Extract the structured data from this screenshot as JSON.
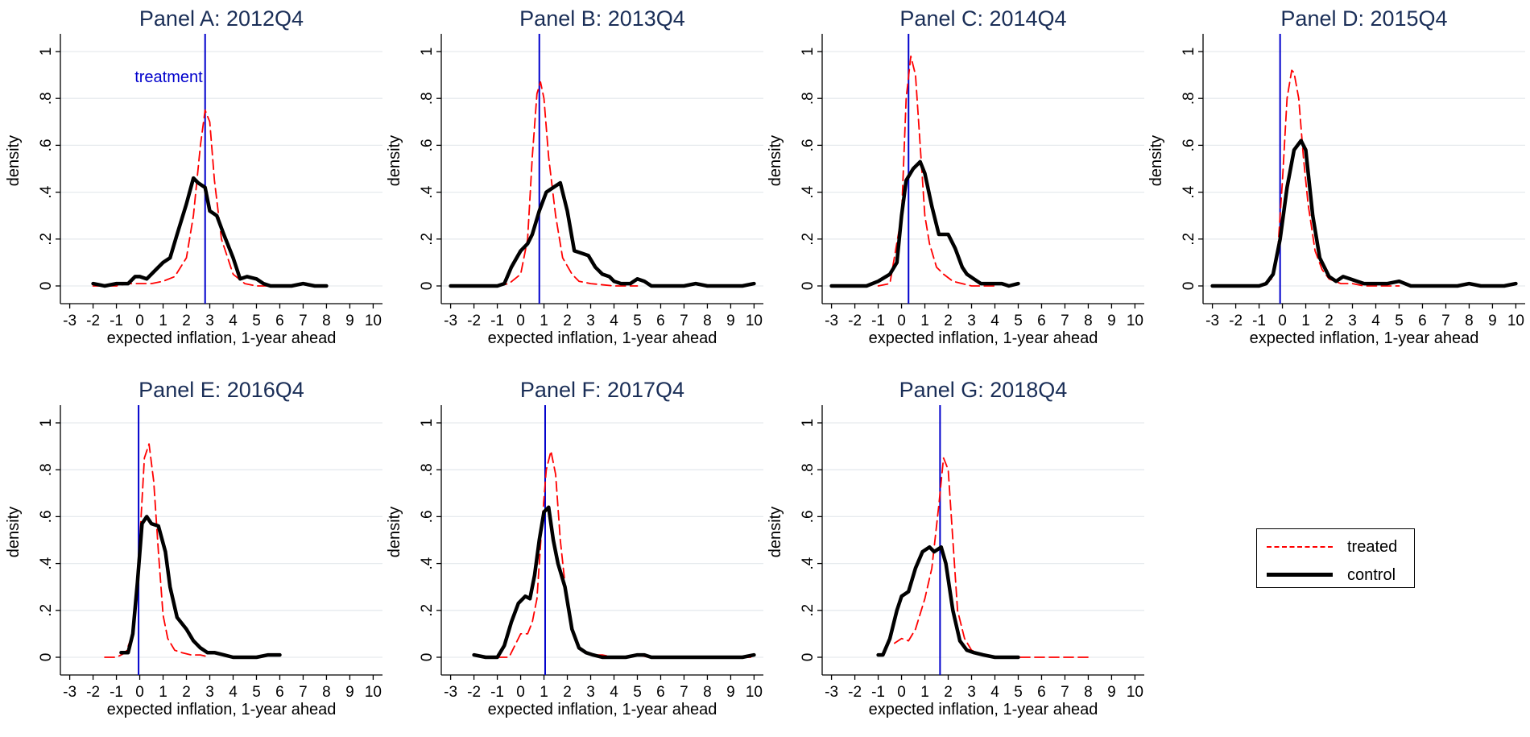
{
  "figure": {
    "xlabel": "expected inflation, 1-year ahead",
    "ylabel": "density",
    "xticks": [
      -3,
      -2,
      -1,
      0,
      1,
      2,
      3,
      4,
      5,
      6,
      7,
      8,
      9,
      10
    ],
    "yticks": [
      0,
      0.2,
      0.4,
      0.6,
      0.8,
      1
    ],
    "ytick_labels": [
      "0",
      ".2",
      ".4",
      ".6",
      ".8",
      "1"
    ],
    "treatment_label": "treatment",
    "colors": {
      "treated": "#ff0000",
      "control": "#000000",
      "treatment_line": "#0000cc",
      "title": "#1a2e57",
      "grid": "#e6eaee"
    }
  },
  "legend": {
    "position": "bottom-right",
    "entries": [
      {
        "label": "treated",
        "style": "dashed",
        "color": "#ff0000"
      },
      {
        "label": "control",
        "style": "solid-thick",
        "color": "#000000"
      }
    ]
  },
  "chart_data": [
    {
      "type": "line",
      "title": "Panel A: 2012Q4",
      "xlim": [
        -3.4,
        10.4
      ],
      "ylim": [
        0,
        1
      ],
      "treatment_x": 2.8,
      "series": [
        {
          "name": "treated",
          "x": [
            -2,
            -1,
            -0.5,
            0,
            0.5,
            1,
            1.5,
            2,
            2.3,
            2.6,
            2.8,
            3,
            3.2,
            3.5,
            4,
            4.5,
            5,
            5.5
          ],
          "y": [
            0,
            0,
            0.01,
            0.01,
            0.01,
            0.02,
            0.04,
            0.12,
            0.3,
            0.6,
            0.75,
            0.7,
            0.45,
            0.2,
            0.05,
            0.01,
            0,
            0
          ]
        },
        {
          "name": "control",
          "x": [
            -2,
            -1.5,
            -1,
            -0.5,
            -0.2,
            0,
            0.3,
            0.6,
            1,
            1.3,
            1.6,
            2,
            2.3,
            2.5,
            2.8,
            3,
            3.3,
            3.6,
            4,
            4.3,
            4.6,
            5,
            5.3,
            5.6,
            6,
            6.5,
            7,
            7.5,
            8
          ],
          "y": [
            0.01,
            0,
            0.01,
            0.01,
            0.04,
            0.04,
            0.03,
            0.06,
            0.1,
            0.12,
            0.22,
            0.35,
            0.46,
            0.44,
            0.42,
            0.32,
            0.3,
            0.22,
            0.12,
            0.03,
            0.04,
            0.03,
            0.01,
            0,
            0,
            0,
            0.01,
            0,
            0
          ]
        }
      ]
    },
    {
      "type": "line",
      "title": "Panel B: 2013Q4",
      "xlim": [
        -3.4,
        10.4
      ],
      "ylim": [
        0,
        1
      ],
      "treatment_x": 0.8,
      "series": [
        {
          "name": "treated",
          "x": [
            -1,
            -0.5,
            0,
            0.3,
            0.5,
            0.7,
            0.85,
            1,
            1.2,
            1.5,
            1.8,
            2.2,
            2.5,
            3,
            4,
            5
          ],
          "y": [
            0,
            0.01,
            0.05,
            0.2,
            0.55,
            0.82,
            0.87,
            0.8,
            0.55,
            0.3,
            0.12,
            0.05,
            0.02,
            0.01,
            0,
            0
          ]
        },
        {
          "name": "control",
          "x": [
            -3,
            -2.5,
            -2,
            -1.5,
            -1,
            -0.7,
            -0.4,
            0,
            0.3,
            0.5,
            0.8,
            1.1,
            1.4,
            1.7,
            2,
            2.3,
            2.6,
            2.9,
            3.2,
            3.5,
            3.8,
            4,
            4.3,
            4.7,
            5,
            5.3,
            5.6,
            6,
            6.5,
            7,
            7.5,
            8,
            8.5,
            9,
            9.5,
            10
          ],
          "y": [
            0,
            0,
            0,
            0,
            0,
            0.01,
            0.08,
            0.15,
            0.18,
            0.22,
            0.32,
            0.4,
            0.42,
            0.44,
            0.32,
            0.15,
            0.14,
            0.13,
            0.08,
            0.05,
            0.04,
            0.02,
            0.01,
            0.01,
            0.03,
            0.02,
            0,
            0,
            0,
            0,
            0.01,
            0,
            0,
            0,
            0,
            0.01
          ]
        }
      ]
    },
    {
      "type": "line",
      "title": "Panel C: 2014Q4",
      "xlim": [
        -3.4,
        10.4
      ],
      "ylim": [
        0,
        1
      ],
      "treatment_x": 0.3,
      "series": [
        {
          "name": "treated",
          "x": [
            -1,
            -0.5,
            0,
            0.2,
            0.4,
            0.6,
            0.8,
            1,
            1.2,
            1.5,
            1.8,
            2.2,
            2.6,
            3,
            3.5,
            4
          ],
          "y": [
            0,
            0.01,
            0.3,
            0.8,
            0.98,
            0.9,
            0.6,
            0.3,
            0.18,
            0.08,
            0.05,
            0.02,
            0.01,
            0,
            0,
            0
          ]
        },
        {
          "name": "control",
          "x": [
            -3,
            -2.5,
            -2,
            -1.5,
            -1,
            -0.5,
            -0.2,
            0,
            0.2,
            0.5,
            0.8,
            1,
            1.3,
            1.6,
            2,
            2.3,
            2.6,
            2.8,
            3.1,
            3.4,
            3.7,
            4,
            4.3,
            4.6,
            5
          ],
          "y": [
            0,
            0,
            0,
            0,
            0.02,
            0.05,
            0.1,
            0.3,
            0.45,
            0.5,
            0.53,
            0.48,
            0.34,
            0.22,
            0.22,
            0.16,
            0.08,
            0.05,
            0.03,
            0.01,
            0.01,
            0.01,
            0.01,
            0,
            0.01
          ]
        }
      ]
    },
    {
      "type": "line",
      "title": "Panel D: 2015Q4",
      "xlim": [
        -3.4,
        10.4
      ],
      "ylim": [
        0,
        1
      ],
      "treatment_x": -0.1,
      "series": [
        {
          "name": "treated",
          "x": [
            -1,
            -0.5,
            -0.2,
            0,
            0.2,
            0.4,
            0.5,
            0.7,
            0.9,
            1.1,
            1.4,
            1.7,
            2,
            2.5,
            3,
            3.5,
            4,
            4.5,
            5
          ],
          "y": [
            0,
            0.02,
            0.15,
            0.45,
            0.8,
            0.92,
            0.91,
            0.8,
            0.55,
            0.35,
            0.15,
            0.07,
            0.03,
            0.01,
            0.01,
            0,
            0,
            0,
            0
          ]
        },
        {
          "name": "control",
          "x": [
            -3,
            -2.5,
            -2,
            -1.5,
            -1,
            -0.7,
            -0.4,
            -0.1,
            0.2,
            0.5,
            0.8,
            1,
            1.3,
            1.6,
            2,
            2.3,
            2.6,
            2.9,
            3.2,
            3.5,
            4,
            4.5,
            5,
            5.5,
            6,
            6.5,
            7,
            7.5,
            8,
            8.5,
            9,
            9.5,
            10
          ],
          "y": [
            0,
            0,
            0,
            0,
            0,
            0.01,
            0.05,
            0.2,
            0.42,
            0.58,
            0.62,
            0.58,
            0.3,
            0.12,
            0.04,
            0.02,
            0.04,
            0.03,
            0.02,
            0.01,
            0.01,
            0.01,
            0.02,
            0,
            0,
            0,
            0,
            0,
            0.01,
            0,
            0,
            0,
            0.01
          ]
        }
      ]
    },
    {
      "type": "line",
      "title": "Panel E: 2016Q4",
      "xlim": [
        -3.4,
        10.4
      ],
      "ylim": [
        0,
        1
      ],
      "treatment_x": -0.05,
      "series": [
        {
          "name": "treated",
          "x": [
            -1.5,
            -1,
            -0.6,
            -0.3,
            0,
            0.2,
            0.4,
            0.6,
            0.8,
            1,
            1.2,
            1.5,
            1.8,
            2.2,
            2.6,
            3
          ],
          "y": [
            0,
            0,
            0.02,
            0.1,
            0.5,
            0.85,
            0.91,
            0.75,
            0.45,
            0.18,
            0.08,
            0.03,
            0.02,
            0.01,
            0.01,
            0
          ]
        },
        {
          "name": "control",
          "x": [
            -0.8,
            -0.5,
            -0.3,
            -0.1,
            0.1,
            0.3,
            0.5,
            0.8,
            1.1,
            1.3,
            1.6,
            2,
            2.3,
            2.6,
            2.9,
            3.2,
            3.6,
            4,
            4.5,
            5,
            5.5,
            6
          ],
          "y": [
            0.02,
            0.02,
            0.1,
            0.32,
            0.57,
            0.6,
            0.57,
            0.56,
            0.45,
            0.3,
            0.17,
            0.12,
            0.07,
            0.04,
            0.02,
            0.02,
            0.01,
            0,
            0,
            0,
            0.01,
            0.01
          ]
        }
      ]
    },
    {
      "type": "line",
      "title": "Panel F: 2017Q4",
      "xlim": [
        -3.4,
        10.4
      ],
      "ylim": [
        0,
        1
      ],
      "treatment_x": 1.05,
      "series": [
        {
          "name": "treated",
          "x": [
            -1,
            -0.5,
            0,
            0.3,
            0.5,
            0.7,
            0.9,
            1.1,
            1.3,
            1.5,
            1.7,
            2,
            2.3,
            2.6,
            3,
            3.5,
            4,
            4.5,
            5,
            5.5,
            6,
            7,
            8,
            9,
            10
          ],
          "y": [
            0,
            0,
            0.1,
            0.1,
            0.15,
            0.25,
            0.55,
            0.8,
            0.88,
            0.78,
            0.5,
            0.22,
            0.08,
            0.03,
            0.01,
            0.01,
            0,
            0,
            0.01,
            0,
            0,
            0,
            0,
            0,
            0
          ]
        },
        {
          "name": "control",
          "x": [
            -2,
            -1.5,
            -1,
            -0.7,
            -0.4,
            -0.1,
            0.2,
            0.4,
            0.6,
            0.8,
            1,
            1.2,
            1.4,
            1.6,
            1.9,
            2.2,
            2.5,
            2.8,
            3.1,
            3.5,
            4,
            4.5,
            5,
            5.3,
            5.6,
            6,
            7,
            8,
            9,
            9.5,
            10
          ],
          "y": [
            0.01,
            0,
            0,
            0.05,
            0.15,
            0.23,
            0.26,
            0.25,
            0.35,
            0.5,
            0.62,
            0.64,
            0.5,
            0.4,
            0.3,
            0.12,
            0.04,
            0.02,
            0.01,
            0,
            0,
            0,
            0.01,
            0.01,
            0,
            0,
            0,
            0,
            0,
            0,
            0.01
          ]
        }
      ]
    },
    {
      "type": "line",
      "title": "Panel G: 2018Q4",
      "xlim": [
        -3.4,
        10.4
      ],
      "ylim": [
        0,
        1
      ],
      "treatment_x": 1.65,
      "series": [
        {
          "name": "treated",
          "x": [
            -0.3,
            0,
            0.3,
            0.6,
            1,
            1.3,
            1.6,
            1.8,
            2,
            2.2,
            2.4,
            2.7,
            3,
            3.5,
            4,
            5,
            6,
            7,
            8
          ],
          "y": [
            0.06,
            0.08,
            0.07,
            0.12,
            0.25,
            0.38,
            0.65,
            0.85,
            0.8,
            0.5,
            0.2,
            0.08,
            0.03,
            0.01,
            0,
            0,
            0,
            0,
            0
          ]
        },
        {
          "name": "control",
          "x": [
            -1,
            -0.8,
            -0.5,
            -0.2,
            0,
            0.3,
            0.6,
            0.9,
            1.2,
            1.4,
            1.7,
            1.9,
            2.2,
            2.5,
            2.8,
            3.1,
            3.5,
            4,
            4.5,
            5
          ],
          "y": [
            0.01,
            0.01,
            0.08,
            0.2,
            0.26,
            0.28,
            0.38,
            0.45,
            0.47,
            0.45,
            0.47,
            0.4,
            0.2,
            0.07,
            0.03,
            0.02,
            0.01,
            0,
            0,
            0
          ]
        }
      ]
    }
  ]
}
